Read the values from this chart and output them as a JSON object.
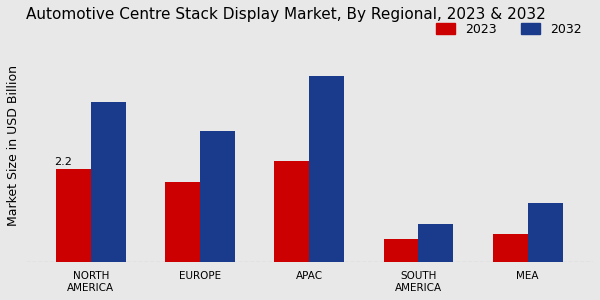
{
  "title": "Automotive Centre Stack Display Market, By Regional, 2023 & 2032",
  "ylabel": "Market Size in USD Billion",
  "categories": [
    "NORTH\nAMERICA",
    "EUROPE",
    "APAC",
    "SOUTH\nAMERICA",
    "MEA"
  ],
  "values_2023": [
    2.2,
    1.9,
    2.4,
    0.55,
    0.65
  ],
  "values_2032": [
    3.8,
    3.1,
    4.4,
    0.9,
    1.4
  ],
  "color_2023": "#cc0000",
  "color_2032": "#1a3a8c",
  "annotation_text": "2.2",
  "annotation_region": 0,
  "annotation_series": 2023,
  "background_color": "#e8e8e8",
  "title_fontsize": 11,
  "ylabel_fontsize": 9,
  "tick_fontsize": 7.5,
  "legend_fontsize": 9,
  "bar_width": 0.32,
  "ylim": [
    0,
    5.5
  ]
}
